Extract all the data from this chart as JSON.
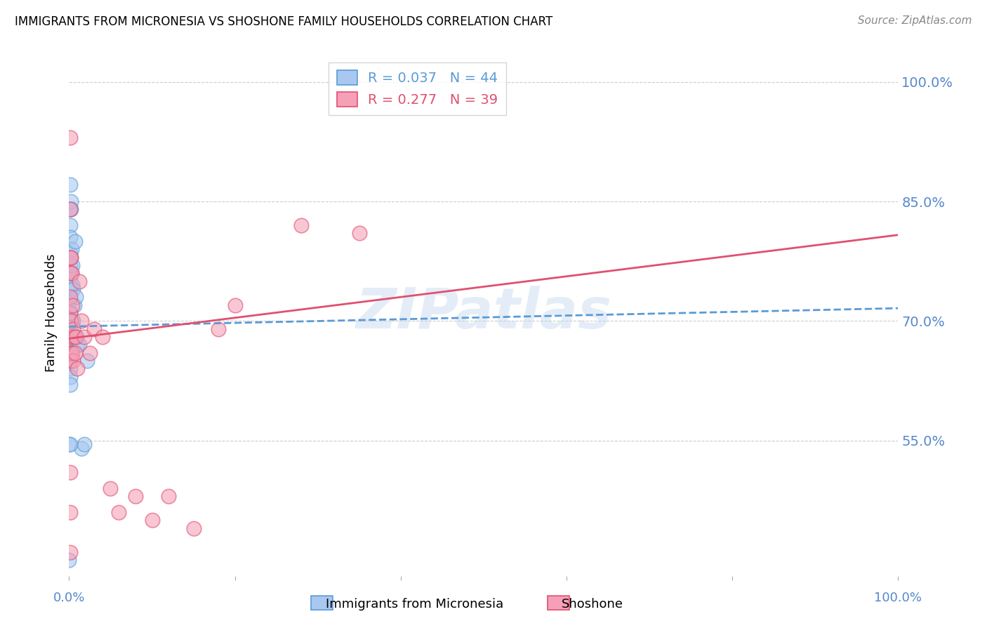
{
  "title": "IMMIGRANTS FROM MICRONESIA VS SHOSHONE FAMILY HOUSEHOLDS CORRELATION CHART",
  "source": "Source: ZipAtlas.com",
  "ylabel": "Family Households",
  "ytick_labels": [
    "100.0%",
    "85.0%",
    "70.0%",
    "55.0%"
  ],
  "ytick_values": [
    1.0,
    0.85,
    0.7,
    0.55
  ],
  "xlim": [
    0.0,
    1.0
  ],
  "ylim": [
    0.38,
    1.04
  ],
  "legend_series1": "R = 0.037   N = 44",
  "legend_series2": "R = 0.277   N = 39",
  "watermark": "ZIPatlas",
  "blue_fill": "#a8c8f0",
  "blue_edge": "#5b9bd5",
  "pink_fill": "#f5a0b8",
  "pink_edge": "#e05070",
  "blue_line_color": "#5b9bd5",
  "pink_line_color": "#e05070",
  "axis_tick_color": "#5588cc",
  "blue_scatter_x": [
    0.0,
    0.001,
    0.001,
    0.001,
    0.001,
    0.001,
    0.001,
    0.001,
    0.001,
    0.001,
    0.001,
    0.001,
    0.001,
    0.001,
    0.001,
    0.001,
    0.001,
    0.001,
    0.001,
    0.001,
    0.002,
    0.002,
    0.002,
    0.002,
    0.002,
    0.003,
    0.003,
    0.003,
    0.004,
    0.004,
    0.004,
    0.005,
    0.005,
    0.006,
    0.007,
    0.008,
    0.009,
    0.01,
    0.012,
    0.015,
    0.018,
    0.022,
    0.0,
    0.001
  ],
  "blue_scatter_y": [
    0.4,
    0.871,
    0.84,
    0.82,
    0.805,
    0.785,
    0.77,
    0.755,
    0.74,
    0.725,
    0.71,
    0.7,
    0.69,
    0.68,
    0.67,
    0.66,
    0.65,
    0.64,
    0.63,
    0.62,
    0.85,
    0.84,
    0.78,
    0.7,
    0.66,
    0.79,
    0.76,
    0.68,
    0.77,
    0.745,
    0.7,
    0.74,
    0.7,
    0.72,
    0.8,
    0.73,
    0.68,
    0.67,
    0.67,
    0.54,
    0.545,
    0.65,
    0.545,
    0.545
  ],
  "pink_scatter_x": [
    0.001,
    0.001,
    0.001,
    0.001,
    0.001,
    0.001,
    0.001,
    0.002,
    0.002,
    0.002,
    0.003,
    0.003,
    0.004,
    0.004,
    0.005,
    0.005,
    0.006,
    0.007,
    0.008,
    0.01,
    0.012,
    0.015,
    0.018,
    0.025,
    0.03,
    0.04,
    0.05,
    0.06,
    0.08,
    0.1,
    0.12,
    0.15,
    0.18,
    0.2,
    0.28,
    0.35,
    0.001,
    0.001,
    0.001
  ],
  "pink_scatter_y": [
    0.93,
    0.84,
    0.78,
    0.76,
    0.73,
    0.71,
    0.65,
    0.78,
    0.7,
    0.66,
    0.76,
    0.68,
    0.72,
    0.66,
    0.69,
    0.65,
    0.68,
    0.66,
    0.68,
    0.64,
    0.75,
    0.7,
    0.68,
    0.66,
    0.69,
    0.68,
    0.49,
    0.46,
    0.48,
    0.45,
    0.48,
    0.44,
    0.69,
    0.72,
    0.82,
    0.81,
    0.51,
    0.46,
    0.41
  ],
  "blue_trend_y_start": 0.693,
  "blue_trend_y_end": 0.716,
  "pink_trend_y_start": 0.678,
  "pink_trend_y_end": 0.808
}
